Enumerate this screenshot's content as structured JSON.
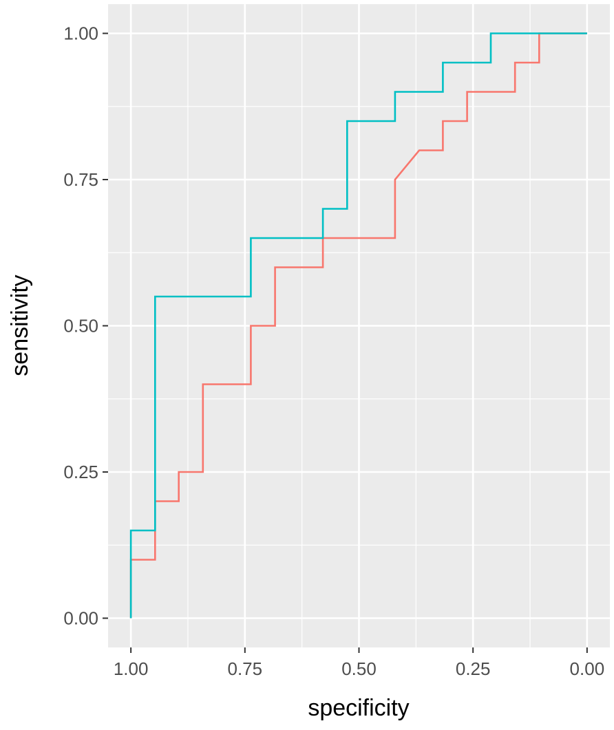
{
  "chart_data": {
    "type": "line",
    "title": "",
    "xlabel": "specificity",
    "ylabel": "sensitivity",
    "x_reversed": true,
    "xlim": [
      1.05,
      -0.05
    ],
    "ylim": [
      -0.05,
      1.05
    ],
    "x_ticks": [
      1.0,
      0.75,
      0.5,
      0.25,
      0.0
    ],
    "x_tick_labels": [
      "1.00",
      "0.75",
      "0.50",
      "0.25",
      "0.00"
    ],
    "y_ticks": [
      0.0,
      0.25,
      0.5,
      0.75,
      1.0
    ],
    "y_tick_labels": [
      "0.00",
      "0.25",
      "0.50",
      "0.75",
      "1.00"
    ],
    "grid": true,
    "legend": "none",
    "background_color": "#ebebeb",
    "grid_color": "#ffffff",
    "series": [
      {
        "color": "#f8766d",
        "points": [
          [
            1.0,
            0.0
          ],
          [
            1.0,
            0.1
          ],
          [
            0.947,
            0.1
          ],
          [
            0.947,
            0.2
          ],
          [
            0.895,
            0.2
          ],
          [
            0.895,
            0.25
          ],
          [
            0.842,
            0.25
          ],
          [
            0.842,
            0.4
          ],
          [
            0.737,
            0.4
          ],
          [
            0.737,
            0.5
          ],
          [
            0.684,
            0.5
          ],
          [
            0.684,
            0.6
          ],
          [
            0.579,
            0.6
          ],
          [
            0.579,
            0.65
          ],
          [
            0.421,
            0.65
          ],
          [
            0.421,
            0.75
          ],
          [
            0.368,
            0.8
          ],
          [
            0.316,
            0.8
          ],
          [
            0.316,
            0.85
          ],
          [
            0.263,
            0.85
          ],
          [
            0.263,
            0.9
          ],
          [
            0.158,
            0.9
          ],
          [
            0.158,
            0.95
          ],
          [
            0.105,
            0.95
          ],
          [
            0.105,
            1.0
          ],
          [
            0.0,
            1.0
          ]
        ]
      },
      {
        "color": "#00bfc4",
        "points": [
          [
            1.0,
            0.0
          ],
          [
            1.0,
            0.15
          ],
          [
            0.947,
            0.15
          ],
          [
            0.947,
            0.55
          ],
          [
            0.737,
            0.55
          ],
          [
            0.737,
            0.65
          ],
          [
            0.579,
            0.65
          ],
          [
            0.579,
            0.7
          ],
          [
            0.526,
            0.7
          ],
          [
            0.526,
            0.85
          ],
          [
            0.421,
            0.85
          ],
          [
            0.421,
            0.9
          ],
          [
            0.316,
            0.9
          ],
          [
            0.316,
            0.95
          ],
          [
            0.211,
            0.95
          ],
          [
            0.211,
            1.0
          ],
          [
            0.0,
            1.0
          ]
        ]
      }
    ]
  }
}
